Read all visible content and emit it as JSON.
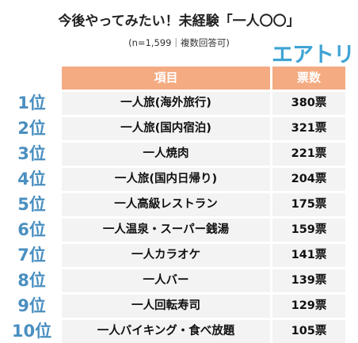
{
  "title": "今後やってみたい！未経験「一人〇〇」",
  "note": "(n=1,599｜複数回答可)",
  "logo": "エアトリ",
  "chart_data": {
    "type": "table",
    "columns": [
      "項目",
      "票数"
    ],
    "rows": [
      {
        "rank": "1位",
        "item": "一人旅(海外旅行)",
        "votes": "380票",
        "value": 380
      },
      {
        "rank": "2位",
        "item": "一人旅(国内宿泊)",
        "votes": "321票",
        "value": 321
      },
      {
        "rank": "3位",
        "item": "一人焼肉",
        "votes": "221票",
        "value": 221
      },
      {
        "rank": "4位",
        "item": "一人旅(国内日帰り)",
        "votes": "204票",
        "value": 204
      },
      {
        "rank": "5位",
        "item": "一人高級レストラン",
        "votes": "175票",
        "value": 175
      },
      {
        "rank": "6位",
        "item": "一人温泉・スーパー銭湯",
        "votes": "159票",
        "value": 159
      },
      {
        "rank": "7位",
        "item": "一人カラオケ",
        "votes": "141票",
        "value": 141
      },
      {
        "rank": "8位",
        "item": "一人バー",
        "votes": "139票",
        "value": 139
      },
      {
        "rank": "9位",
        "item": "一人回転寿司",
        "votes": "129票",
        "value": 129
      },
      {
        "rank": "10位",
        "item": "一人バイキング・食べ放題",
        "votes": "105票",
        "value": 105
      }
    ]
  }
}
